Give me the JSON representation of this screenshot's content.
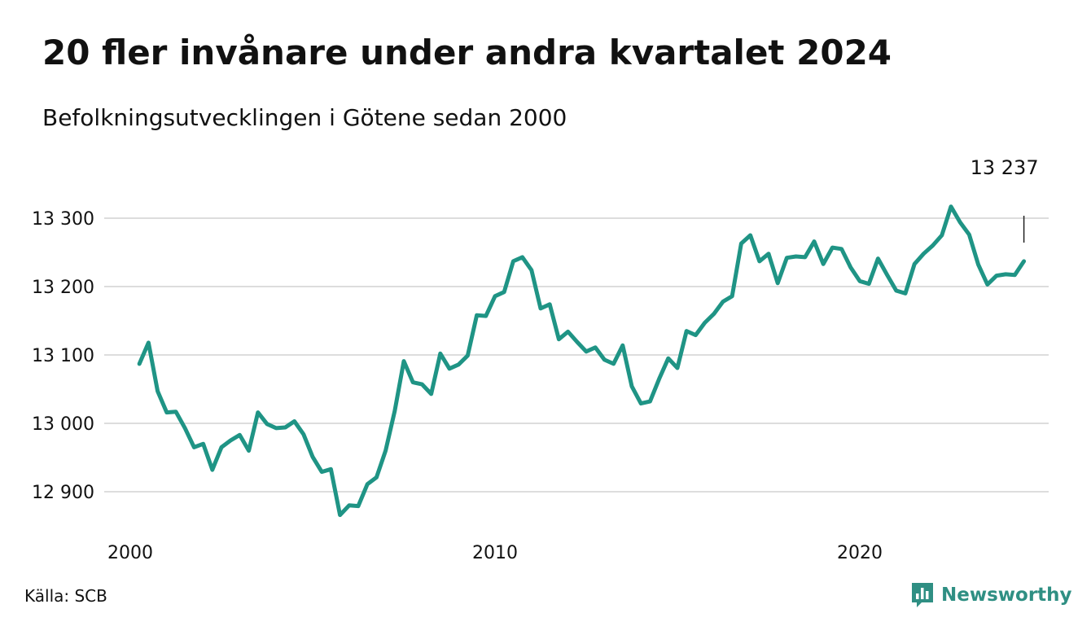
{
  "header": {
    "title": "20 fler invånare under andra kvartalet 2024",
    "subtitle": "Befolkningsutvecklingen i Götene sedan 2000"
  },
  "footer": {
    "source": "Källa: SCB",
    "brand": "Newsworthy",
    "brand_icon": "bar-chart-speech-bubble-icon"
  },
  "colors": {
    "line": "#1f9485",
    "grid": "#dddddd",
    "text": "#111111",
    "brand": "#2f8f83"
  },
  "chart_data": {
    "type": "line",
    "title": "20 fler invånare under andra kvartalet 2024",
    "subtitle": "Befolkningsutvecklingen i Götene sedan 2000",
    "xlabel": "",
    "ylabel": "",
    "grid": true,
    "ylim": [
      12850,
      13340
    ],
    "xlim": [
      2000,
      2024.5
    ],
    "yticks": [
      {
        "value": 13300,
        "label": "13 300"
      },
      {
        "value": 13200,
        "label": "13 200"
      },
      {
        "value": 13100,
        "label": "13 100"
      },
      {
        "value": 13000,
        "label": "13 000"
      },
      {
        "value": 12900,
        "label": "12 900"
      }
    ],
    "xticks": [
      {
        "value": 2000,
        "label": "2000"
      },
      {
        "value": 2010,
        "label": "2010"
      },
      {
        "value": 2020,
        "label": "2020"
      }
    ],
    "last_value_label": "13 237",
    "series": [
      {
        "name": "",
        "x": [
          2000.25,
          2000.5,
          2000.75,
          2001,
          2001.25,
          2001.5,
          2001.75,
          2002,
          2002.25,
          2002.5,
          2002.75,
          2003,
          2003.25,
          2003.5,
          2003.75,
          2004,
          2004.25,
          2004.5,
          2004.75,
          2005,
          2005.25,
          2005.5,
          2005.75,
          2006,
          2006.25,
          2006.5,
          2006.75,
          2007,
          2007.25,
          2007.5,
          2007.75,
          2008,
          2008.25,
          2008.5,
          2008.75,
          2009,
          2009.25,
          2009.5,
          2009.75,
          2010,
          2010.25,
          2010.5,
          2010.75,
          2011,
          2011.25,
          2011.5,
          2011.75,
          2012,
          2012.25,
          2012.5,
          2012.75,
          2013,
          2013.25,
          2013.5,
          2013.75,
          2014,
          2014.25,
          2014.5,
          2014.75,
          2015,
          2015.25,
          2015.5,
          2015.75,
          2016,
          2016.25,
          2016.5,
          2016.75,
          2017,
          2017.25,
          2017.5,
          2017.75,
          2018,
          2018.25,
          2018.5,
          2018.75,
          2019,
          2019.25,
          2019.5,
          2019.75,
          2020,
          2020.25,
          2020.5,
          2020.75,
          2021,
          2021.25,
          2021.5,
          2021.75,
          2022,
          2022.25,
          2022.5,
          2022.75,
          2023,
          2023.25,
          2023.5,
          2023.75,
          2024,
          2024.25,
          2024.5
        ],
        "values": [
          13087,
          13118,
          13047,
          13016,
          13017,
          12993,
          12965,
          12970,
          12932,
          12965,
          12975,
          12983,
          12960,
          13016,
          12999,
          12993,
          12994,
          13003,
          12984,
          12951,
          12929,
          12933,
          12866,
          12880,
          12879,
          12911,
          12921,
          12960,
          13018,
          13091,
          13060,
          13057,
          13043,
          13102,
          13080,
          13086,
          13099,
          13158,
          13157,
          13186,
          13192,
          13237,
          13243,
          13224,
          13168,
          13174,
          13123,
          13134,
          13119,
          13105,
          13111,
          13093,
          13087,
          13114,
          13054,
          13029,
          13032,
          13065,
          13095,
          13081,
          13135,
          13129,
          13147,
          13160,
          13178,
          13186,
          13263,
          13275,
          13237,
          13248,
          13205,
          13242,
          13244,
          13243,
          13266,
          13233,
          13257,
          13255,
          13228,
          13208,
          13204,
          13241,
          13217,
          13194,
          13190,
          13233,
          13248,
          13260,
          13275,
          13317,
          13294,
          13276,
          13232,
          13203,
          13216,
          13218,
          13217,
          13237
        ]
      }
    ]
  }
}
